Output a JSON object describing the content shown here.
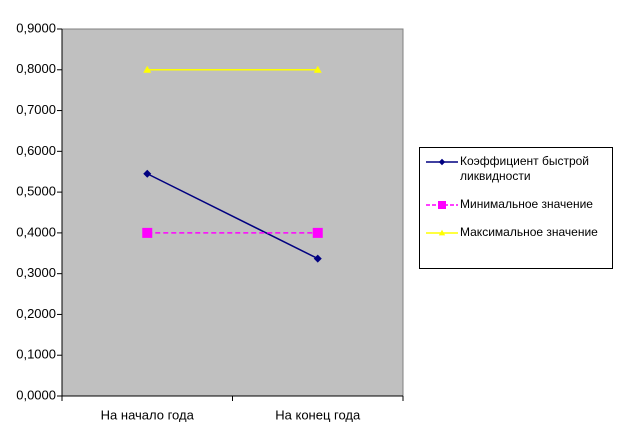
{
  "chart_data": {
    "type": "line",
    "categories": [
      "На начало года",
      "На конец года"
    ],
    "series": [
      {
        "name": "Коэффициент быстрой ликвидности",
        "color": "#000080",
        "marker": "diamond",
        "dashed": false,
        "values": [
          0.545,
          0.337
        ]
      },
      {
        "name": "Минимальное значение",
        "color": "#ff00ff",
        "marker": "square",
        "dashed": true,
        "values": [
          0.4,
          0.4
        ]
      },
      {
        "name": "Максимальное значение",
        "color": "#ffff00",
        "marker": "triangle",
        "dashed": false,
        "values": [
          0.8,
          0.8
        ]
      }
    ],
    "ylim": [
      0,
      0.9
    ],
    "yticks": [
      {
        "value": 0,
        "label": "0,0000"
      },
      {
        "value": 0.1,
        "label": "0,1000"
      },
      {
        "value": 0.2,
        "label": "0,2000"
      },
      {
        "value": 0.3,
        "label": "0,3000"
      },
      {
        "value": 0.4,
        "label": "0,4000"
      },
      {
        "value": 0.5,
        "label": "0,5000"
      },
      {
        "value": 0.6,
        "label": "0,6000"
      },
      {
        "value": 0.7,
        "label": "0,7000"
      },
      {
        "value": 0.8,
        "label": "0,8000"
      },
      {
        "value": 0.9,
        "label": "0,9000"
      }
    ],
    "grid": false,
    "legend": "right"
  }
}
